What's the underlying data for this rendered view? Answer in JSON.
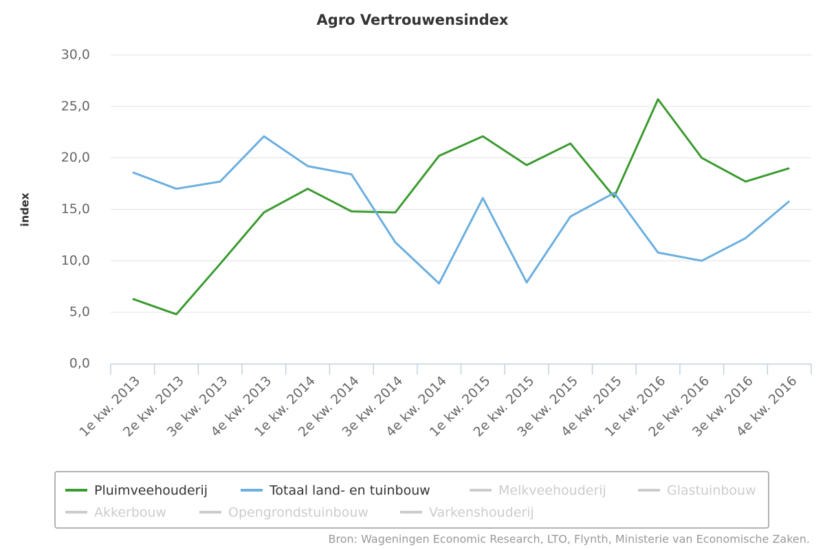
{
  "chart_data": {
    "type": "line",
    "title": "Agro Vertrouwensindex",
    "y_label": "index",
    "source": "Bron: Wageningen Economic Research, LTO, Flynth, Ministerie van Economische Zaken.",
    "categories": [
      "1e kw. 2013",
      "2e kw. 2013",
      "3e kw. 2013",
      "4e kw. 2013",
      "1e kw. 2014",
      "2e kw. 2014",
      "3e kw. 2014",
      "4e kw. 2014",
      "1e kw. 2015",
      "2e kw. 2015",
      "3e kw. 2015",
      "4e kw. 2015",
      "1e kw. 2016",
      "2e kw. 2016",
      "3e kw. 2016",
      "4e kw. 2016"
    ],
    "series": [
      {
        "name": "Pluimveehouderij",
        "color": "#3a9a2f",
        "values": [
          6.3,
          4.8,
          9.7,
          14.7,
          17.0,
          14.8,
          14.7,
          20.2,
          22.1,
          19.3,
          21.4,
          16.2,
          25.7,
          20.0,
          17.7,
          19.0
        ]
      },
      {
        "name": "Totaal land- en tuinbouw",
        "color": "#6aafdf",
        "values": [
          18.6,
          17.0,
          17.7,
          22.1,
          19.2,
          18.4,
          11.8,
          7.8,
          16.1,
          7.9,
          14.3,
          16.6,
          10.8,
          10.0,
          12.2,
          15.8
        ]
      },
      {
        "name": "Melkveehouderij",
        "color": "#cccccc",
        "visible": false
      },
      {
        "name": "Glastuinbouw",
        "color": "#cccccc",
        "visible": false
      },
      {
        "name": "Akkerbouw",
        "color": "#cccccc",
        "visible": false
      },
      {
        "name": "Opengrondstuinbouw",
        "color": "#cccccc",
        "visible": false
      },
      {
        "name": "Varkenshouderij",
        "color": "#cccccc",
        "visible": false
      }
    ],
    "ylim": [
      0,
      30
    ],
    "yticks": [
      {
        "value": 0,
        "label": "0,0"
      },
      {
        "value": 5,
        "label": "5,0"
      },
      {
        "value": 10,
        "label": "10,0"
      },
      {
        "value": 15,
        "label": "15,0"
      },
      {
        "value": 20,
        "label": "20,0"
      },
      {
        "value": 25,
        "label": "25,0"
      },
      {
        "value": 30,
        "label": "30,0"
      }
    ],
    "grid": true,
    "legend": "bottom"
  }
}
